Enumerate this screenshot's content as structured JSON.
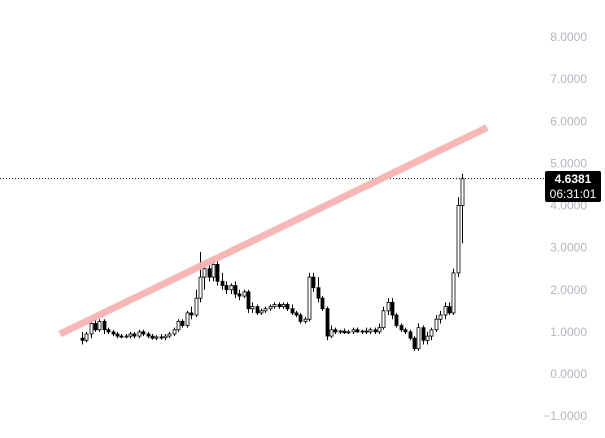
{
  "chart_data": {
    "type": "candlestick",
    "y_axis": {
      "side": "right",
      "ticks": [
        "8.0000",
        "7.0000",
        "6.0000",
        "5.0000",
        "4.0000",
        "3.0000",
        "2.0000",
        "1.0000",
        "0.0000",
        "−1.0000"
      ],
      "tick_values": [
        8,
        7,
        6,
        5,
        4,
        3,
        2,
        1,
        0,
        -1
      ],
      "ylim": [
        -1.2,
        8.5
      ]
    },
    "grid": false,
    "current_price": {
      "label": "4.6381",
      "value": 4.6381,
      "countdown": "06:31:01"
    },
    "trendline": {
      "color": "#f8b4b4",
      "start_value": 0.95,
      "end_value": 5.85
    },
    "colors": {
      "up": "#ffffff",
      "down": "#000000",
      "wick": "#000000",
      "price_line": "#000000"
    },
    "candles": [
      [
        0.85,
        1.0,
        0.7,
        0.8
      ],
      [
        0.8,
        1.0,
        0.75,
        0.95
      ],
      [
        0.95,
        1.3,
        0.85,
        1.2
      ],
      [
        1.2,
        1.3,
        1.0,
        1.05
      ],
      [
        1.05,
        1.3,
        1.0,
        1.25
      ],
      [
        1.25,
        1.3,
        0.95,
        1.05
      ],
      [
        1.05,
        1.1,
        0.95,
        1.0
      ],
      [
        1.0,
        1.05,
        0.9,
        0.95
      ],
      [
        0.95,
        1.0,
        0.85,
        0.9
      ],
      [
        0.9,
        0.95,
        0.85,
        0.88
      ],
      [
        0.88,
        0.95,
        0.85,
        0.9
      ],
      [
        0.9,
        1.0,
        0.85,
        0.95
      ],
      [
        0.95,
        1.0,
        0.85,
        0.9
      ],
      [
        0.9,
        1.05,
        0.85,
        1.0
      ],
      [
        1.0,
        1.05,
        0.9,
        0.95
      ],
      [
        0.95,
        1.0,
        0.85,
        0.9
      ],
      [
        0.9,
        0.95,
        0.82,
        0.85
      ],
      [
        0.85,
        0.92,
        0.8,
        0.88
      ],
      [
        0.88,
        0.95,
        0.82,
        0.86
      ],
      [
        0.86,
        0.95,
        0.8,
        0.9
      ],
      [
        0.9,
        1.0,
        0.85,
        0.95
      ],
      [
        0.95,
        1.1,
        0.9,
        1.05
      ],
      [
        1.05,
        1.3,
        1.0,
        1.25
      ],
      [
        1.25,
        1.3,
        1.1,
        1.15
      ],
      [
        1.15,
        1.5,
        1.1,
        1.45
      ],
      [
        1.45,
        1.6,
        1.3,
        1.4
      ],
      [
        1.4,
        2.0,
        1.35,
        1.8
      ],
      [
        1.8,
        2.9,
        1.7,
        2.3
      ],
      [
        2.3,
        2.6,
        2.0,
        2.5
      ],
      [
        2.5,
        2.65,
        2.2,
        2.3
      ],
      [
        2.3,
        2.7,
        2.2,
        2.6
      ],
      [
        2.6,
        2.7,
        2.1,
        2.2
      ],
      [
        2.2,
        2.4,
        2.0,
        2.1
      ],
      [
        2.1,
        2.2,
        1.9,
        2.0
      ],
      [
        2.0,
        2.15,
        1.9,
        2.1
      ],
      [
        2.1,
        2.2,
        1.8,
        1.9
      ],
      [
        1.9,
        2.0,
        1.75,
        1.85
      ],
      [
        1.85,
        2.0,
        1.8,
        1.95
      ],
      [
        1.95,
        2.0,
        1.45,
        1.55
      ],
      [
        1.55,
        1.7,
        1.45,
        1.6
      ],
      [
        1.6,
        1.65,
        1.4,
        1.45
      ],
      [
        1.45,
        1.55,
        1.4,
        1.5
      ],
      [
        1.5,
        1.6,
        1.45,
        1.55
      ],
      [
        1.55,
        1.65,
        1.5,
        1.6
      ],
      [
        1.6,
        1.7,
        1.55,
        1.65
      ],
      [
        1.65,
        1.7,
        1.55,
        1.6
      ],
      [
        1.6,
        1.7,
        1.55,
        1.65
      ],
      [
        1.65,
        1.7,
        1.5,
        1.55
      ],
      [
        1.55,
        1.65,
        1.4,
        1.45
      ],
      [
        1.45,
        1.5,
        1.35,
        1.4
      ],
      [
        1.4,
        1.45,
        1.2,
        1.25
      ],
      [
        1.25,
        1.35,
        1.2,
        1.3
      ],
      [
        1.3,
        2.4,
        1.25,
        2.3
      ],
      [
        2.3,
        2.4,
        1.95,
        2.05
      ],
      [
        2.05,
        2.3,
        1.7,
        1.8
      ],
      [
        1.8,
        1.85,
        1.5,
        1.55
      ],
      [
        1.55,
        1.6,
        0.8,
        0.9
      ],
      [
        0.9,
        1.15,
        0.85,
        1.05
      ],
      [
        1.05,
        1.1,
        0.95,
        1.0
      ],
      [
        1.0,
        1.05,
        0.95,
        1.02
      ],
      [
        1.02,
        1.08,
        0.95,
        0.98
      ],
      [
        0.98,
        1.05,
        0.95,
        1.0
      ],
      [
        1.0,
        1.1,
        0.95,
        1.05
      ],
      [
        1.05,
        1.1,
        0.98,
        1.0
      ],
      [
        1.0,
        1.05,
        0.95,
        1.02
      ],
      [
        1.02,
        1.1,
        0.95,
        1.0
      ],
      [
        1.0,
        1.1,
        0.95,
        1.05
      ],
      [
        1.05,
        1.1,
        0.95,
        1.0
      ],
      [
        1.0,
        1.2,
        0.95,
        1.1
      ],
      [
        1.1,
        1.6,
        1.05,
        1.5
      ],
      [
        1.5,
        1.8,
        1.4,
        1.7
      ],
      [
        1.7,
        1.8,
        1.3,
        1.4
      ],
      [
        1.4,
        1.45,
        1.1,
        1.15
      ],
      [
        1.15,
        1.2,
        1.0,
        1.05
      ],
      [
        1.05,
        1.1,
        0.95,
        1.0
      ],
      [
        1.0,
        1.05,
        0.8,
        0.85
      ],
      [
        0.85,
        0.9,
        0.55,
        0.6
      ],
      [
        0.6,
        1.2,
        0.55,
        1.1
      ],
      [
        1.1,
        1.15,
        0.7,
        0.8
      ],
      [
        0.8,
        1.0,
        0.7,
        0.9
      ],
      [
        0.9,
        1.1,
        0.8,
        1.05
      ],
      [
        1.05,
        1.4,
        1.0,
        1.3
      ],
      [
        1.3,
        1.5,
        1.2,
        1.4
      ],
      [
        1.4,
        1.7,
        1.3,
        1.6
      ],
      [
        1.6,
        1.7,
        1.4,
        1.45
      ],
      [
        1.45,
        2.5,
        1.4,
        2.4
      ],
      [
        2.4,
        4.2,
        2.3,
        4.0
      ],
      [
        4.0,
        4.75,
        3.1,
        4.6381
      ]
    ]
  },
  "price_tag": {
    "value": "4.6381",
    "countdown": "06:31:01"
  }
}
